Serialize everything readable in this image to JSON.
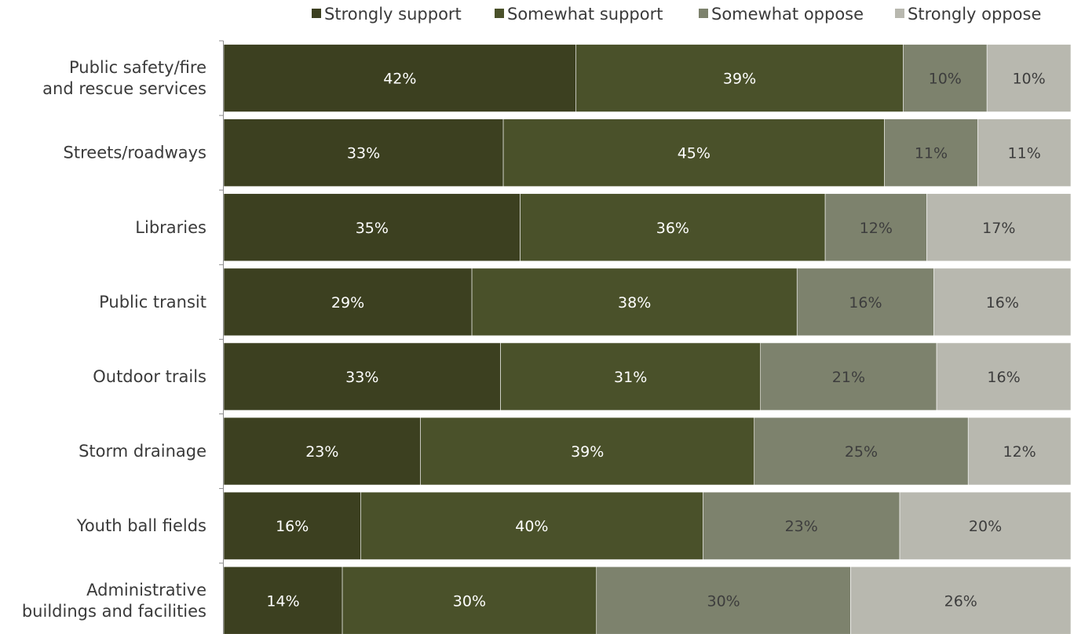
{
  "chart_data": {
    "type": "bar",
    "orientation": "horizontal",
    "stacked": true,
    "normalized": true,
    "title": "",
    "xlabel": "",
    "ylabel": "",
    "legend_position": "top",
    "grid": false,
    "categories": [
      "Public safety/fire and rescue services",
      "Streets/roadways",
      "Libraries",
      "Public transit",
      "Outdoor trails",
      "Storm drainage",
      "Youth ball fields",
      "Administrative buildings and facilities"
    ],
    "series": [
      {
        "name": "Strongly support",
        "color": "#3c4020",
        "label_color": "#ffffff",
        "values": [
          42,
          33,
          35,
          29,
          33,
          23,
          16,
          14
        ]
      },
      {
        "name": "Somewhat support",
        "color": "#4a512a",
        "label_color": "#ffffff",
        "values": [
          39,
          45,
          36,
          38,
          31,
          39,
          40,
          30
        ]
      },
      {
        "name": "Somewhat oppose",
        "color": "#7d826d",
        "label_color": "#3d3d3d",
        "values": [
          10,
          11,
          12,
          16,
          21,
          25,
          23,
          30
        ]
      },
      {
        "name": "Strongly oppose",
        "color": "#b8b8af",
        "label_color": "#3d3d3d",
        "values": [
          10,
          11,
          17,
          16,
          16,
          12,
          20,
          26
        ]
      }
    ]
  }
}
